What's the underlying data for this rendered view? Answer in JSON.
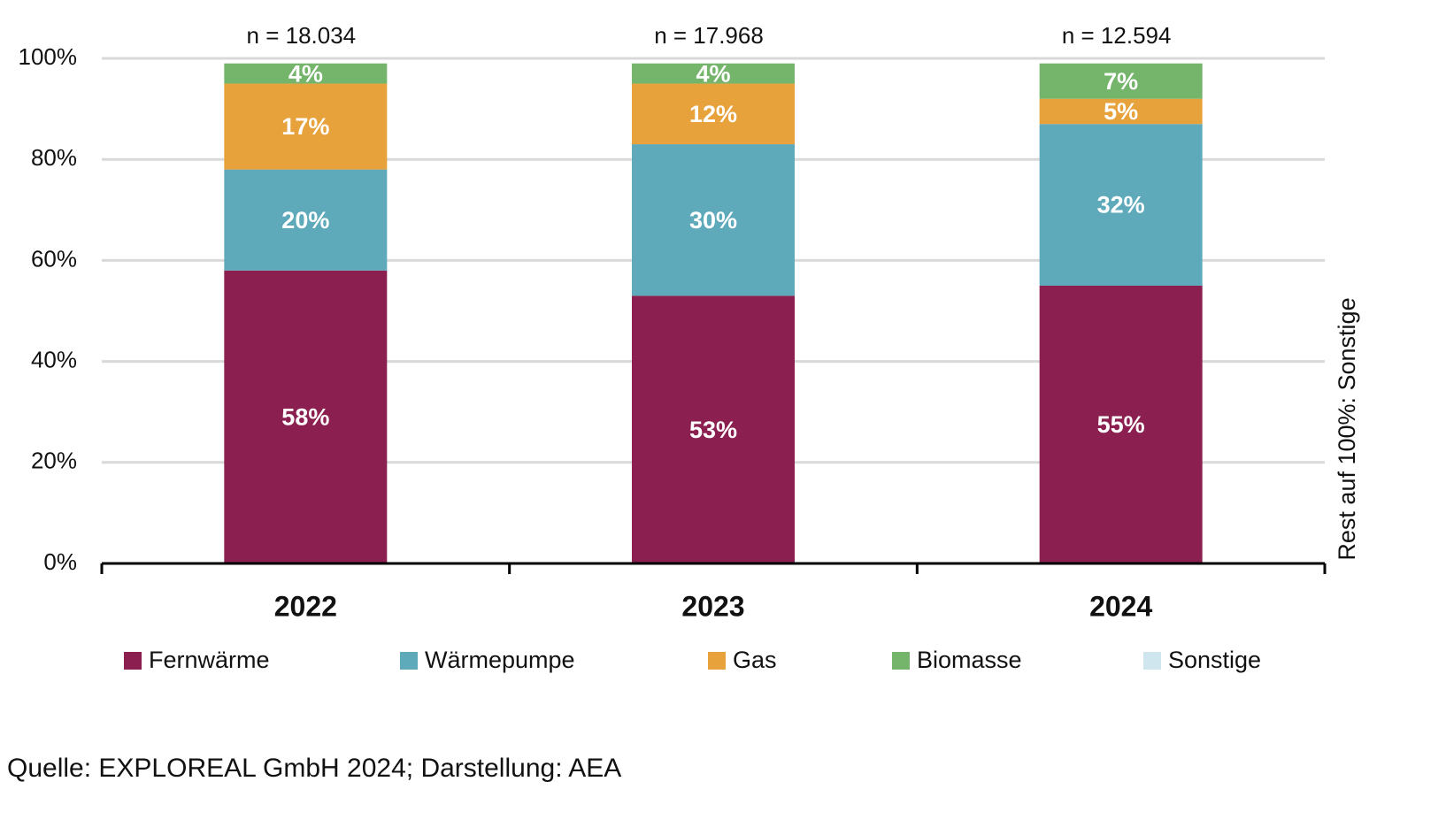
{
  "chart_data": {
    "type": "stacked_bar",
    "categories": [
      "2022",
      "2023",
      "2024"
    ],
    "annotations": [
      "n = 18.034",
      "n = 17.968",
      "n = 12.594"
    ],
    "series": [
      {
        "name": "Fernwärme",
        "color": "#8b1f50",
        "values": [
          58,
          53,
          55
        ],
        "value_labels": [
          "58%",
          "53%",
          "55%"
        ]
      },
      {
        "name": "Wärmepumpe",
        "color": "#5eaabb",
        "values": [
          20,
          30,
          32
        ],
        "value_labels": [
          "20%",
          "30%",
          "32%"
        ]
      },
      {
        "name": "Gas",
        "color": "#e8a23b",
        "values": [
          17,
          12,
          5
        ],
        "value_labels": [
          "17%",
          "12%",
          "5%"
        ]
      },
      {
        "name": "Biomasse",
        "color": "#75b46b",
        "values": [
          4,
          4,
          7
        ],
        "value_labels": [
          "4%",
          "4%",
          "7%"
        ]
      },
      {
        "name": "Sonstige",
        "color": "#cfe6ee",
        "values": [
          null,
          null,
          null
        ]
      }
    ],
    "ylim": [
      0,
      100
    ],
    "yticks": [
      {
        "value": 0,
        "label": "0%"
      },
      {
        "value": 20,
        "label": "20%"
      },
      {
        "value": 40,
        "label": "40%"
      },
      {
        "value": 60,
        "label": "60%"
      },
      {
        "value": 80,
        "label": "80%"
      },
      {
        "value": 100,
        "label": "100%"
      }
    ],
    "grid": true,
    "y2_axis_label": "Rest auf 100%: Sonstige",
    "source": "Quelle: EXPLOREAL GmbH 2024; Darstellung: AEA"
  }
}
